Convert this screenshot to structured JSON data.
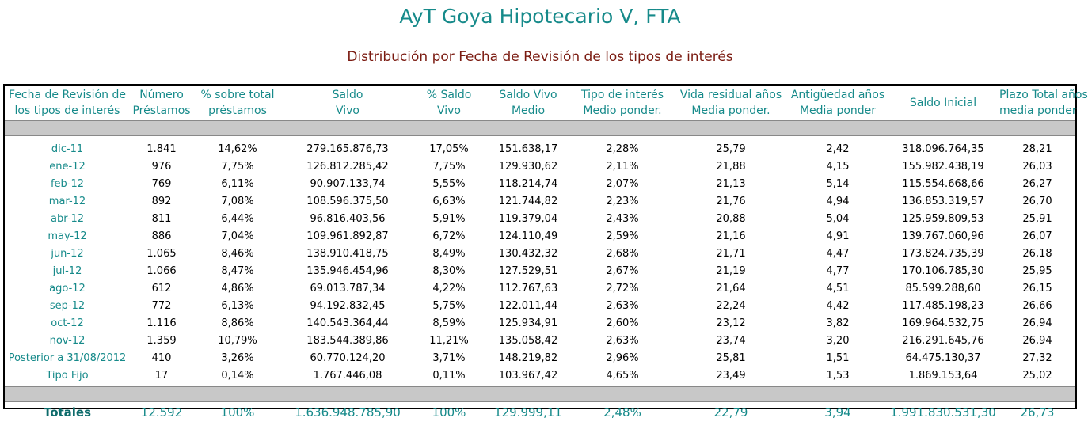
{
  "title": "AyT Goya Hipotecario V, FTA",
  "subtitle": "Distribución por Fecha de Revisión de los tipos de interés",
  "headers": [
    [
      "Fecha de Revisión de",
      "los tipos de interés"
    ],
    [
      "Número",
      "Préstamos"
    ],
    [
      "% sobre total",
      "préstamos"
    ],
    [
      "Saldo",
      "Vivo"
    ],
    [
      "% Saldo",
      "Vivo"
    ],
    [
      "Saldo Vivo",
      "Medio"
    ],
    [
      "Tipo de interés",
      "Medio ponder."
    ],
    [
      "Vida residual años",
      "Media ponder."
    ],
    [
      "Antigüedad años",
      "Media ponder"
    ],
    [
      "Saldo Inicial",
      ""
    ],
    [
      "Plazo Total años",
      "media ponder"
    ]
  ],
  "rows": [
    [
      "dic-11",
      "1.841",
      "14,62%",
      "279.165.876,73",
      "17,05%",
      "151.638,17",
      "2,28%",
      "25,79",
      "2,42",
      "318.096.764,35",
      "28,21"
    ],
    [
      "ene-12",
      "976",
      "7,75%",
      "126.812.285,42",
      "7,75%",
      "129.930,62",
      "2,11%",
      "21,88",
      "4,15",
      "155.982.438,19",
      "26,03"
    ],
    [
      "feb-12",
      "769",
      "6,11%",
      "90.907.133,74",
      "5,55%",
      "118.214,74",
      "2,07%",
      "21,13",
      "5,14",
      "115.554.668,66",
      "26,27"
    ],
    [
      "mar-12",
      "892",
      "7,08%",
      "108.596.375,50",
      "6,63%",
      "121.744,82",
      "2,23%",
      "21,76",
      "4,94",
      "136.853.319,57",
      "26,70"
    ],
    [
      "abr-12",
      "811",
      "6,44%",
      "96.816.403,56",
      "5,91%",
      "119.379,04",
      "2,43%",
      "20,88",
      "5,04",
      "125.959.809,53",
      "25,91"
    ],
    [
      "may-12",
      "886",
      "7,04%",
      "109.961.892,87",
      "6,72%",
      "124.110,49",
      "2,59%",
      "21,16",
      "4,91",
      "139.767.060,96",
      "26,07"
    ],
    [
      "jun-12",
      "1.065",
      "8,46%",
      "138.910.418,75",
      "8,49%",
      "130.432,32",
      "2,68%",
      "21,71",
      "4,47",
      "173.824.735,39",
      "26,18"
    ],
    [
      "jul-12",
      "1.066",
      "8,47%",
      "135.946.454,96",
      "8,30%",
      "127.529,51",
      "2,67%",
      "21,19",
      "4,77",
      "170.106.785,30",
      "25,95"
    ],
    [
      "ago-12",
      "612",
      "4,86%",
      "69.013.787,34",
      "4,22%",
      "112.767,63",
      "2,72%",
      "21,64",
      "4,51",
      "85.599.288,60",
      "26,15"
    ],
    [
      "sep-12",
      "772",
      "6,13%",
      "94.192.832,45",
      "5,75%",
      "122.011,44",
      "2,63%",
      "22,24",
      "4,42",
      "117.485.198,23",
      "26,66"
    ],
    [
      "oct-12",
      "1.116",
      "8,86%",
      "140.543.364,44",
      "8,59%",
      "125.934,91",
      "2,60%",
      "23,12",
      "3,82",
      "169.964.532,75",
      "26,94"
    ],
    [
      "nov-12",
      "1.359",
      "10,79%",
      "183.544.389,86",
      "11,21%",
      "135.058,42",
      "2,63%",
      "23,74",
      "3,20",
      "216.291.645,76",
      "26,94"
    ],
    [
      "Posterior a 31/08/2012",
      "410",
      "3,26%",
      "60.770.124,20",
      "3,71%",
      "148.219,82",
      "2,96%",
      "25,81",
      "1,51",
      "64.475.130,37",
      "27,32"
    ],
    [
      "Tipo Fijo",
      "17",
      "0,14%",
      "1.767.446,08",
      "0,11%",
      "103.967,42",
      "4,65%",
      "23,49",
      "1,53",
      "1.869.153,64",
      "25,02"
    ]
  ],
  "totals": [
    "Totales",
    "12.592",
    "100%",
    "1.636.948.785,90",
    "100%",
    "129.999,11",
    "2,48%",
    "22,79",
    "3,94",
    "1.991.830.531,30",
    "26,73"
  ]
}
